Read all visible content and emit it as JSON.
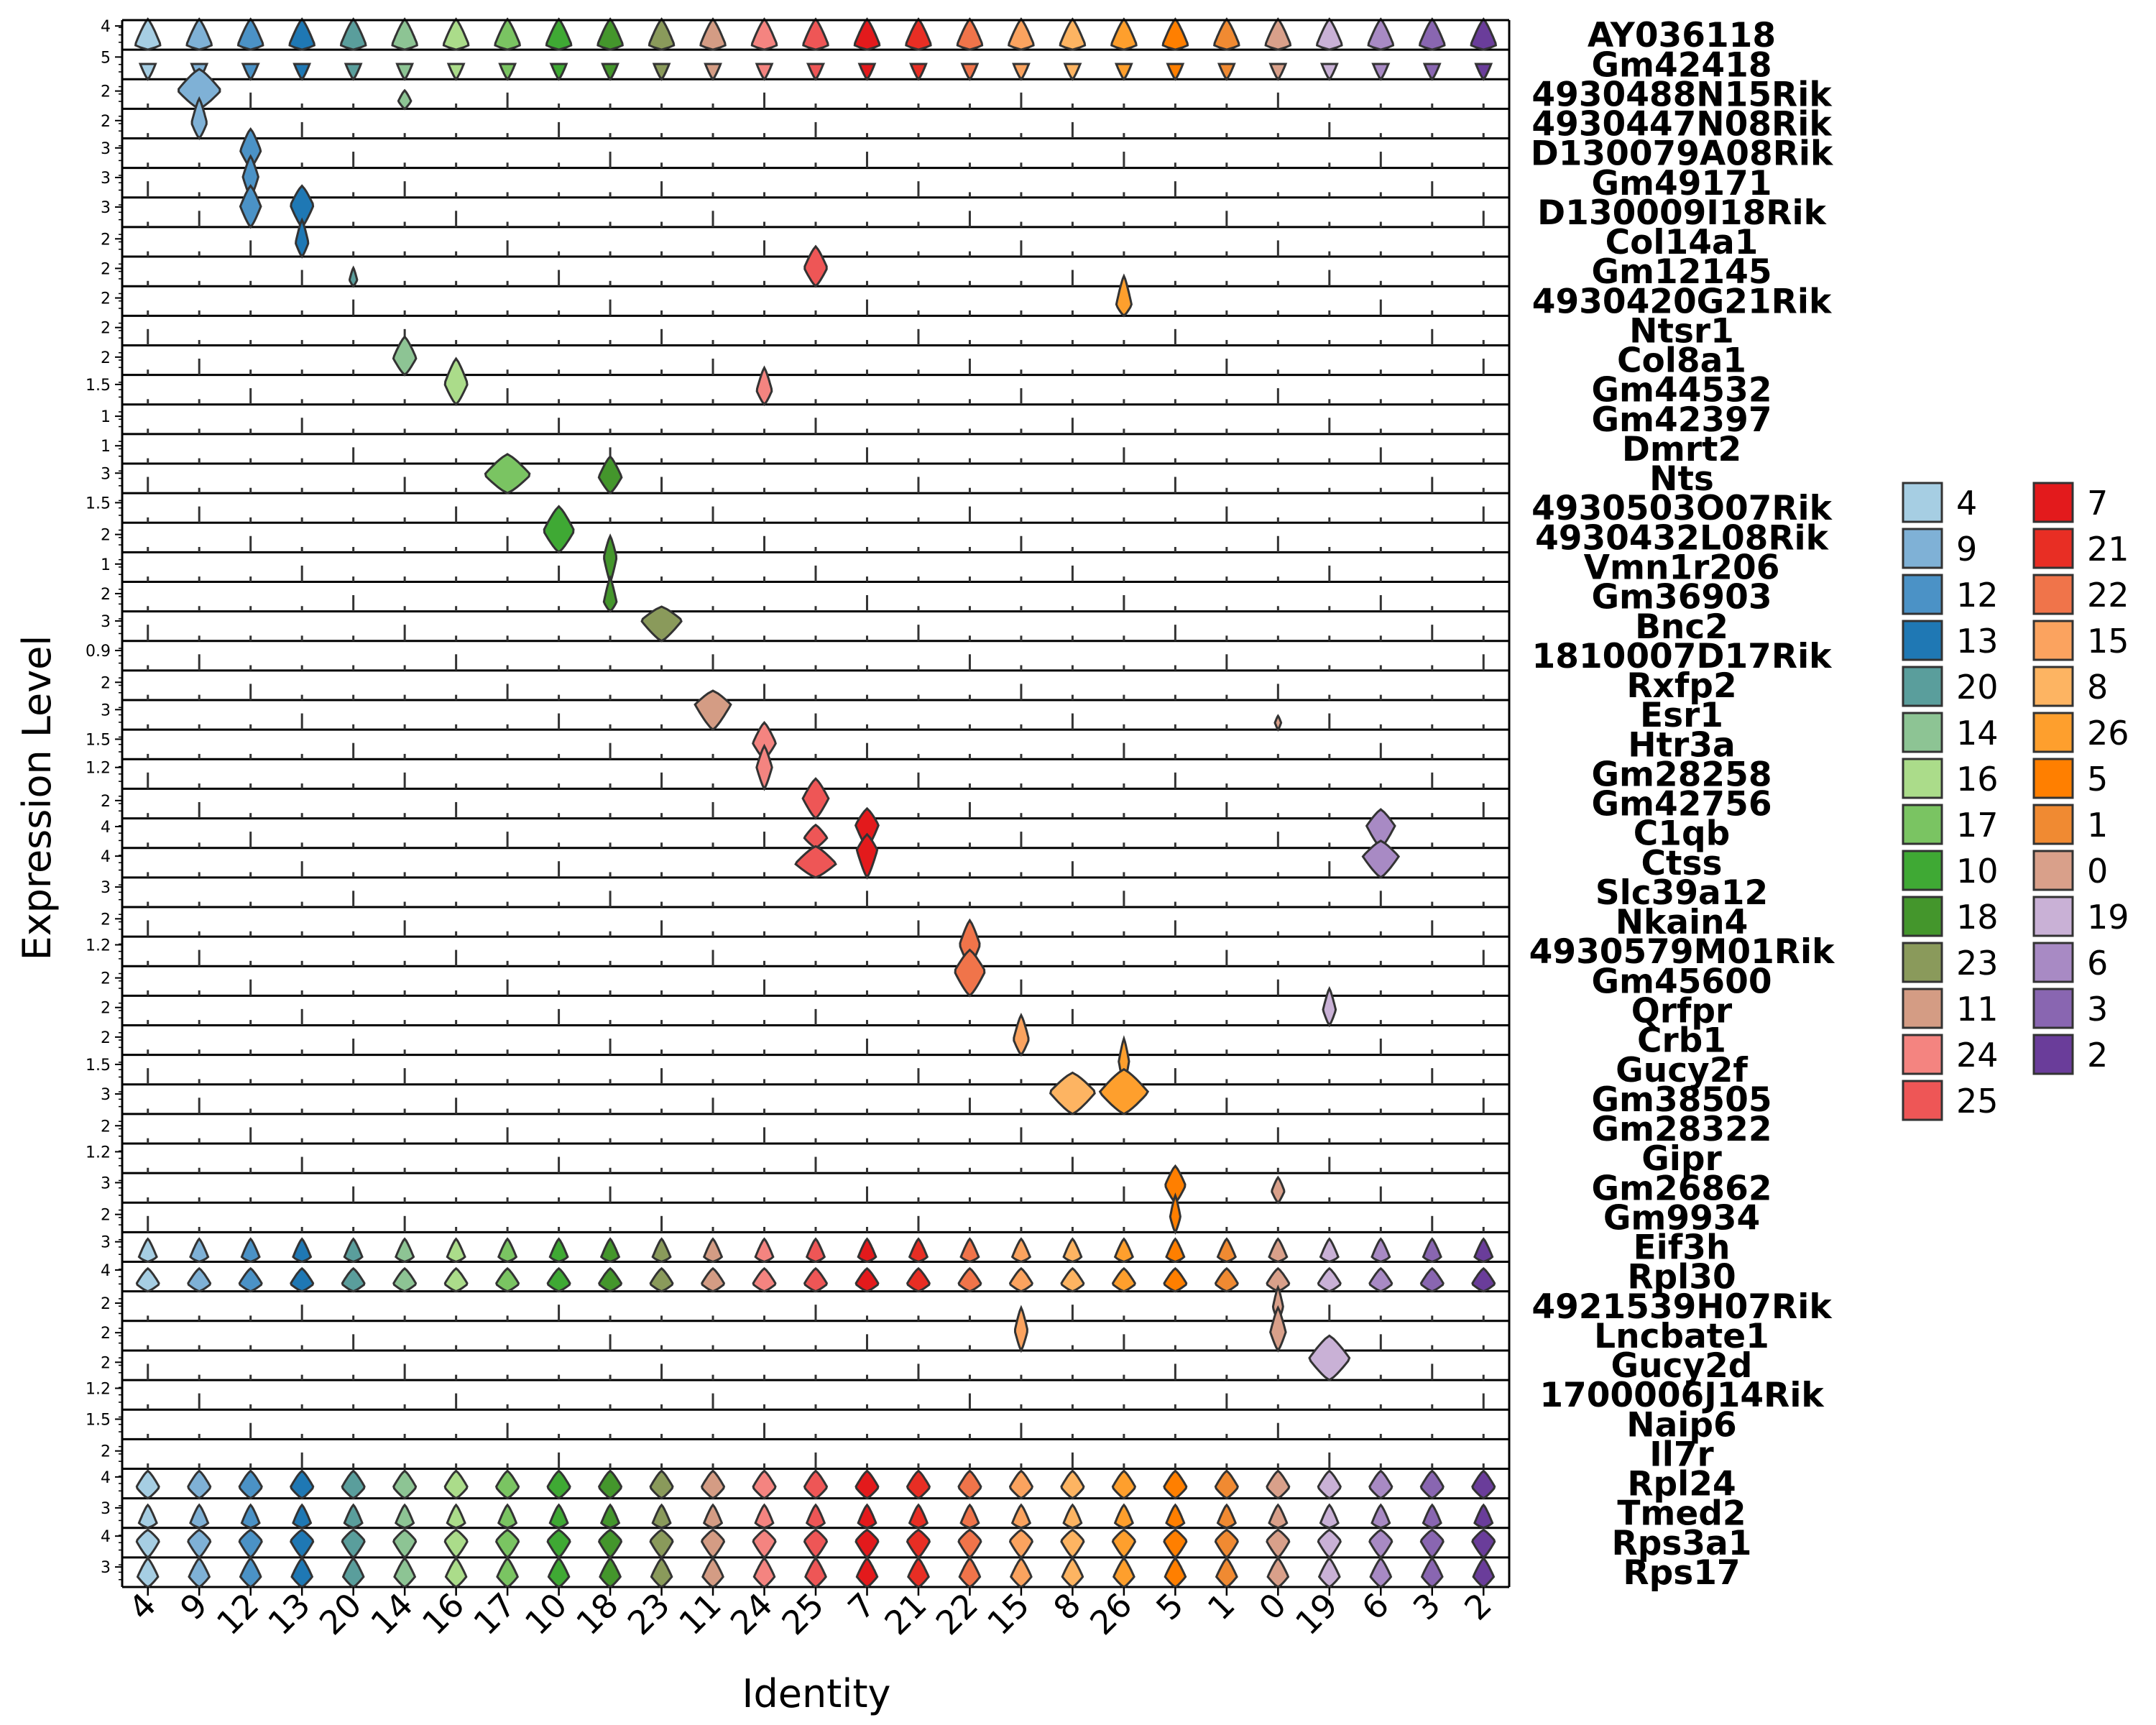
{
  "chart_data": {
    "type": "violin",
    "xlabel": "Identity",
    "ylabel": "Expression Level",
    "identities": [
      "4",
      "9",
      "12",
      "13",
      "20",
      "14",
      "16",
      "17",
      "10",
      "18",
      "23",
      "11",
      "24",
      "25",
      "7",
      "21",
      "22",
      "15",
      "8",
      "26",
      "5",
      "1",
      "0",
      "19",
      "6",
      "3",
      "2"
    ],
    "legend": {
      "placement": "right",
      "columns": [
        [
          "4",
          "9",
          "12",
          "13",
          "20",
          "14",
          "16",
          "17",
          "10",
          "18",
          "23",
          "11",
          "24",
          "25"
        ],
        [
          "7",
          "21",
          "22",
          "15",
          "8",
          "26",
          "5",
          "1",
          "0",
          "19",
          "6",
          "3",
          "2"
        ]
      ]
    },
    "colors": {
      "4": "#a6cee3",
      "9": "#7fb1d6",
      "12": "#4b92c6",
      "13": "#1f78b4",
      "20": "#5a9e9c",
      "14": "#8dc494",
      "16": "#abdc8a",
      "17": "#7ac462",
      "10": "#3fa934",
      "18": "#44962c",
      "23": "#8a9a5b",
      "11": "#d49c84",
      "24": "#f48480",
      "25": "#ee5656",
      "7": "#e31a1c",
      "21": "#e82e24",
      "22": "#f0744a",
      "15": "#fba35f",
      "8": "#fdb462",
      "26": "#fe9f2d",
      "5": "#ff7f00",
      "1": "#f08a32",
      "0": "#d9a08a",
      "19": "#c9b1d6",
      "6": "#a88ac4",
      "3": "#8966b1",
      "2": "#6a3d9a"
    },
    "genes": [
      {
        "name": "AY036118",
        "ytick": "4",
        "ymax": 4.5
      },
      {
        "name": "Gm42418",
        "ytick": "5",
        "ymax": 6
      },
      {
        "name": "4930488N15Rik",
        "ytick": "2",
        "ymax": 3
      },
      {
        "name": "4930447N08Rik",
        "ytick": "2",
        "ymax": 3
      },
      {
        "name": "D130079A08Rik",
        "ytick": "3",
        "ymax": 4
      },
      {
        "name": "Gm49171",
        "ytick": "3",
        "ymax": 4
      },
      {
        "name": "D130009I18Rik",
        "ytick": "3",
        "ymax": 4
      },
      {
        "name": "Col14a1",
        "ytick": "2",
        "ymax": 3
      },
      {
        "name": "Gm12145",
        "ytick": "2",
        "ymax": 3
      },
      {
        "name": "4930420G21Rik",
        "ytick": "2",
        "ymax": 3
      },
      {
        "name": "Ntsr1",
        "ytick": "2",
        "ymax": 3
      },
      {
        "name": "Col8a1",
        "ytick": "2",
        "ymax": 3
      },
      {
        "name": "Gm44532",
        "ytick": "1.5",
        "ymax": 2
      },
      {
        "name": "Gm42397",
        "ytick": "1",
        "ymax": 1.5
      },
      {
        "name": "Dmrt2",
        "ytick": "1",
        "ymax": 1.5
      },
      {
        "name": "Nts",
        "ytick": "3",
        "ymax": 4
      },
      {
        "name": "4930503O07Rik",
        "ytick": "1.5",
        "ymax": 2
      },
      {
        "name": "4930432L08Rik",
        "ytick": "2",
        "ymax": 3
      },
      {
        "name": "Vmn1r206",
        "ytick": "1",
        "ymax": 1.5
      },
      {
        "name": "Gm36903",
        "ytick": "2",
        "ymax": 3
      },
      {
        "name": "Bnc2",
        "ytick": "3",
        "ymax": 4
      },
      {
        "name": "1810007D17Rik",
        "ytick": "0.9",
        "ymax": 1.2
      },
      {
        "name": "Rxfp2",
        "ytick": "2",
        "ymax": 3
      },
      {
        "name": "Esr1",
        "ytick": "3",
        "ymax": 4
      },
      {
        "name": "Htr3a",
        "ytick": "1.5",
        "ymax": 2
      },
      {
        "name": "Gm28258",
        "ytick": "1.2",
        "ymax": 1.5
      },
      {
        "name": "Gm42756",
        "ytick": "2",
        "ymax": 3
      },
      {
        "name": "C1qb",
        "ytick": "4",
        "ymax": 5
      },
      {
        "name": "Ctss",
        "ytick": "4",
        "ymax": 5
      },
      {
        "name": "Slc39a12",
        "ytick": "3",
        "ymax": 4
      },
      {
        "name": "Nkain4",
        "ytick": "2",
        "ymax": 3
      },
      {
        "name": "4930579M01Rik",
        "ytick": "1.2",
        "ymax": 1.5
      },
      {
        "name": "Gm45600",
        "ytick": "2",
        "ymax": 3
      },
      {
        "name": "Qrfpr",
        "ytick": "2",
        "ymax": 3
      },
      {
        "name": "Crb1",
        "ytick": "2",
        "ymax": 3
      },
      {
        "name": "Gucy2f",
        "ytick": "1.5",
        "ymax": 2
      },
      {
        "name": "Gm38505",
        "ytick": "3",
        "ymax": 4
      },
      {
        "name": "Gm28322",
        "ytick": "2",
        "ymax": 3
      },
      {
        "name": "Gipr",
        "ytick": "1.2",
        "ymax": 1.5
      },
      {
        "name": "Gm26862",
        "ytick": "3",
        "ymax": 4
      },
      {
        "name": "Gm9934",
        "ytick": "2",
        "ymax": 3
      },
      {
        "name": "Eif3h",
        "ytick": "3",
        "ymax": 4
      },
      {
        "name": "Rpl30",
        "ytick": "4",
        "ymax": 5
      },
      {
        "name": "4921539H07Rik",
        "ytick": "2",
        "ymax": 3
      },
      {
        "name": "Lncbate1",
        "ytick": "2",
        "ymax": 3
      },
      {
        "name": "Gucy2d",
        "ytick": "2",
        "ymax": 3
      },
      {
        "name": "1700006J14Rik",
        "ytick": "1.2",
        "ymax": 1.5
      },
      {
        "name": "Naip6",
        "ytick": "1.5",
        "ymax": 2
      },
      {
        "name": "Il7r",
        "ytick": "2",
        "ymax": 3
      },
      {
        "name": "Rpl24",
        "ytick": "4",
        "ymax": 5
      },
      {
        "name": "Tmed2",
        "ytick": "3",
        "ymax": 4
      },
      {
        "name": "Rps3a1",
        "ytick": "4",
        "ymax": 5
      },
      {
        "name": "Rps17",
        "ytick": "3",
        "ymax": 4
      }
    ],
    "broad_expression": {
      "AY036118": {
        "center": 0.45,
        "height": 3.0,
        "width": 0.5
      },
      "Gm42418": {
        "center": 4.3,
        "height": 2.0,
        "width": 0.55
      },
      "Rpl30": {
        "center": 0.8,
        "height": 2.5,
        "width": 0.45
      },
      "Rpl24": {
        "center": 1.2,
        "height": 3.0,
        "width": 0.45
      },
      "Rps3a1": {
        "center": 1.8,
        "height": 3.0,
        "width": 0.45
      },
      "Rps17": {
        "center": 0.9,
        "height": 2.5,
        "width": 0.4
      },
      "Eif3h": {
        "center": 0.4,
        "height": 2.0,
        "width": 0.35
      },
      "Tmed2": {
        "center": 0.4,
        "height": 2.0,
        "width": 0.35
      }
    },
    "specific_expression": [
      {
        "gene": "4930488N15Rik",
        "identity": "9",
        "center": 1.2,
        "height": 2.6,
        "width": 0.85
      },
      {
        "gene": "4930488N15Rik",
        "identity": "14",
        "center": 0.5,
        "height": 1.2,
        "width": 0.25
      },
      {
        "gene": "4930447N08Rik",
        "identity": "9",
        "center": 1.0,
        "height": 2.6,
        "width": 0.3
      },
      {
        "gene": "D130079A08Rik",
        "identity": "12",
        "center": 1.5,
        "height": 3.4,
        "width": 0.4
      },
      {
        "gene": "Gm49171",
        "identity": "12",
        "center": 1.8,
        "height": 3.6,
        "width": 0.3
      },
      {
        "gene": "D130009I18Rik",
        "identity": "12",
        "center": 1.8,
        "height": 3.6,
        "width": 0.4
      },
      {
        "gene": "D130009I18Rik",
        "identity": "13",
        "center": 1.9,
        "height": 3.6,
        "width": 0.45
      },
      {
        "gene": "Col14a1",
        "identity": "13",
        "center": 0.9,
        "height": 2.4,
        "width": 0.25
      },
      {
        "gene": "Gm12145",
        "identity": "25",
        "center": 1.2,
        "height": 2.6,
        "width": 0.45
      },
      {
        "gene": "Gm12145",
        "identity": "20",
        "center": 0.4,
        "height": 1.2,
        "width": 0.15
      },
      {
        "gene": "4930420G21Rik",
        "identity": "26",
        "center": 0.7,
        "height": 2.6,
        "width": 0.3
      },
      {
        "gene": "Col8a1",
        "identity": "14",
        "center": 1.1,
        "height": 2.5,
        "width": 0.45
      },
      {
        "gene": "Gm44532",
        "identity": "16",
        "center": 0.9,
        "height": 2.0,
        "width": 0.45
      },
      {
        "gene": "Gm44532",
        "identity": "24",
        "center": 0.6,
        "height": 1.6,
        "width": 0.3
      },
      {
        "gene": "Nts",
        "identity": "17",
        "center": 1.6,
        "height": 3.4,
        "width": 0.9
      },
      {
        "gene": "Nts",
        "identity": "18",
        "center": 1.4,
        "height": 3.2,
        "width": 0.45
      },
      {
        "gene": "4930432L08Rik",
        "identity": "10",
        "center": 1.4,
        "height": 3.0,
        "width": 0.6
      },
      {
        "gene": "Vmn1r206",
        "identity": "18",
        "center": 0.8,
        "height": 1.5,
        "width": 0.25
      },
      {
        "gene": "Gm36903",
        "identity": "18",
        "center": 0.6,
        "height": 2.2,
        "width": 0.25
      },
      {
        "gene": "Bnc2",
        "identity": "23",
        "center": 1.8,
        "height": 3.0,
        "width": 0.8
      },
      {
        "gene": "Esr1",
        "identity": "11",
        "center": 2.2,
        "height": 3.4,
        "width": 0.7
      },
      {
        "gene": "Esr1",
        "identity": "0",
        "center": 0.6,
        "height": 1.2,
        "width": 0.12
      },
      {
        "gene": "Htr3a",
        "identity": "24",
        "center": 0.7,
        "height": 1.6,
        "width": 0.45
      },
      {
        "gene": "Gm28258",
        "identity": "24",
        "center": 0.7,
        "height": 1.4,
        "width": 0.3
      },
      {
        "gene": "Gm42756",
        "identity": "25",
        "center": 1.3,
        "height": 2.6,
        "width": 0.5
      },
      {
        "gene": "C1qb",
        "identity": "25",
        "center": 1.1,
        "height": 2.5,
        "width": 0.45
      },
      {
        "gene": "C1qb",
        "identity": "7",
        "center": 2.5,
        "height": 4.3,
        "width": 0.45
      },
      {
        "gene": "C1qb",
        "identity": "6",
        "center": 2.4,
        "height": 4.2,
        "width": 0.55
      },
      {
        "gene": "Ctss",
        "identity": "25",
        "center": 1.5,
        "height": 3.4,
        "width": 0.8
      },
      {
        "gene": "Ctss",
        "identity": "7",
        "center": 3.0,
        "height": 4.7,
        "width": 0.4
      },
      {
        "gene": "Ctss",
        "identity": "6",
        "center": 2.3,
        "height": 4.0,
        "width": 0.7
      },
      {
        "gene": "4930579M01Rik",
        "identity": "22",
        "center": 0.7,
        "height": 1.5,
        "width": 0.4
      },
      {
        "gene": "Gm45600",
        "identity": "22",
        "center": 1.6,
        "height": 3.0,
        "width": 0.6
      },
      {
        "gene": "Qrfpr",
        "identity": "19",
        "center": 1.0,
        "height": 2.4,
        "width": 0.25
      },
      {
        "gene": "Crb1",
        "identity": "15",
        "center": 1.0,
        "height": 2.6,
        "width": 0.3
      },
      {
        "gene": "Gucy2f",
        "identity": "26",
        "center": 1.0,
        "height": 2.0,
        "width": 0.2
      },
      {
        "gene": "Gm38505",
        "identity": "8",
        "center": 1.9,
        "height": 3.6,
        "width": 0.9
      },
      {
        "gene": "Gm38505",
        "identity": "26",
        "center": 1.9,
        "height": 3.9,
        "width": 0.95
      },
      {
        "gene": "Gm26862",
        "identity": "5",
        "center": 1.5,
        "height": 3.2,
        "width": 0.4
      },
      {
        "gene": "Gm26862",
        "identity": "0",
        "center": 1.0,
        "height": 2.2,
        "width": 0.25
      },
      {
        "gene": "Gm9934",
        "identity": "5",
        "center": 1.0,
        "height": 2.4,
        "width": 0.2
      },
      {
        "gene": "4921539H07Rik",
        "identity": "0",
        "center": 0.9,
        "height": 2.2,
        "width": 0.2
      },
      {
        "gene": "Lncbate1",
        "identity": "15",
        "center": 1.3,
        "height": 2.8,
        "width": 0.25
      },
      {
        "gene": "Lncbate1",
        "identity": "0",
        "center": 1.2,
        "height": 2.8,
        "width": 0.3
      },
      {
        "gene": "Gucy2d",
        "identity": "19",
        "center": 1.4,
        "height": 2.9,
        "width": 0.8
      }
    ]
  }
}
